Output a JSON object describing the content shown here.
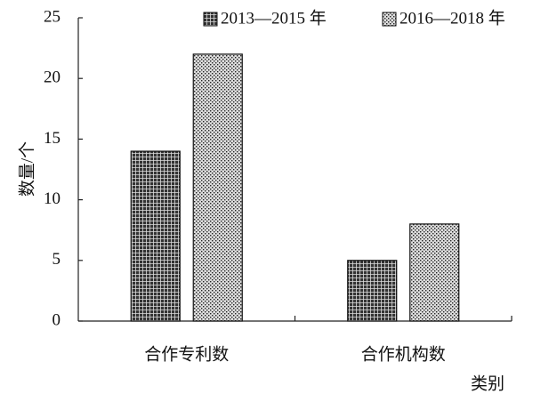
{
  "chart_data": {
    "type": "bar",
    "x_label": "类别",
    "y_label": "数量/个",
    "categories": [
      "合作专利数",
      "合作机构数"
    ],
    "series": [
      {
        "name": "2013—2015 年",
        "color": "#333333",
        "values": [
          14,
          5
        ]
      },
      {
        "name": "2016—2018 年",
        "color": "#dddddd",
        "values": [
          22,
          8
        ]
      }
    ],
    "ylim": [
      0,
      25
    ],
    "yticks": [
      0,
      5,
      10,
      15,
      20,
      25
    ],
    "grid": false
  }
}
